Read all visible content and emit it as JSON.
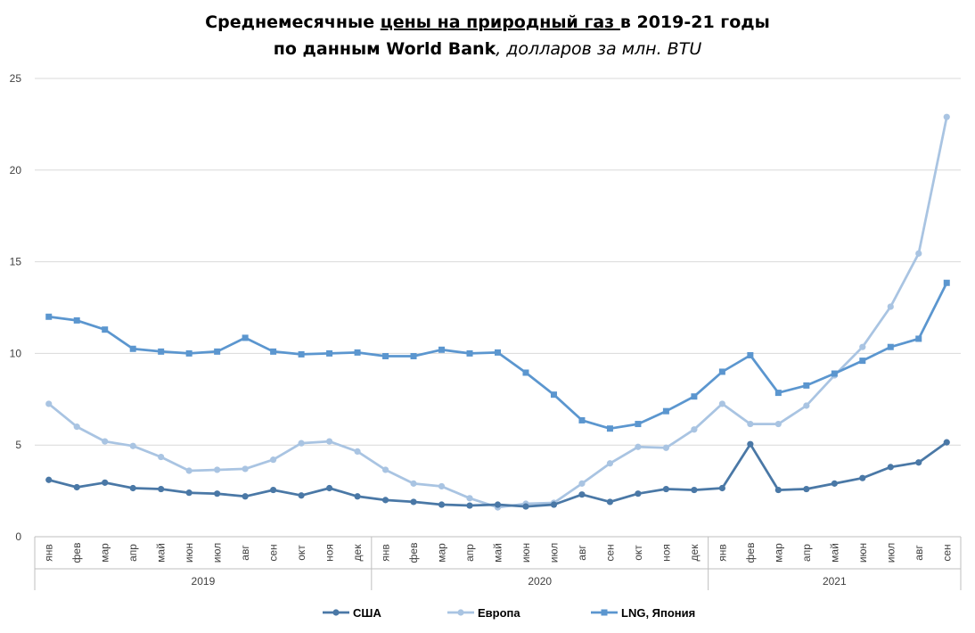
{
  "title": {
    "line1_pre": "Среднемесячные ",
    "line1_underlined": "цены на природный газ ",
    "line1_post": "в 2019-21 годы",
    "line2_bold": "по данным World Bank",
    "line2_italic": ", долларов за млн. BTU"
  },
  "colors": {
    "usa": "#4A78A6",
    "europe": "#A9C4E2",
    "lng": "#5B96CF",
    "grid": "#D9D9D9",
    "axis": "#BFBFBF"
  },
  "chart_data": {
    "type": "line",
    "title": "Среднемесячные цены на природный газ в 2019-21 годы по данным World Bank, долларов за млн. BTU",
    "ylim": [
      0,
      25
    ],
    "yticks": [
      0,
      5,
      10,
      15,
      20,
      25
    ],
    "grid": true,
    "legend_position": "bottom",
    "months": [
      "янв",
      "фев",
      "мар",
      "апр",
      "май",
      "июн",
      "июл",
      "авг",
      "сен",
      "окт",
      "ноя",
      "дек",
      "янв",
      "фев",
      "мар",
      "апр",
      "май",
      "июн",
      "июл",
      "авг",
      "сен",
      "окт",
      "ноя",
      "дек",
      "янв",
      "фев",
      "мар",
      "апр",
      "май",
      "июн",
      "июл",
      "авг",
      "сен"
    ],
    "years": [
      {
        "label": "2019",
        "count": 12
      },
      {
        "label": "2020",
        "count": 12
      },
      {
        "label": "2021",
        "count": 9
      }
    ],
    "series": [
      {
        "name": "США",
        "marker": "circle",
        "values": [
          3.1,
          2.7,
          2.95,
          2.65,
          2.6,
          2.4,
          2.35,
          2.2,
          2.55,
          2.25,
          2.65,
          2.2,
          2.0,
          1.9,
          1.75,
          1.7,
          1.75,
          1.65,
          1.75,
          2.3,
          1.9,
          2.35,
          2.6,
          2.55,
          2.65,
          5.05,
          2.55,
          2.6,
          2.9,
          3.2,
          3.8,
          4.05,
          5.15
        ]
      },
      {
        "name": "Европа",
        "marker": "circle",
        "values": [
          7.25,
          6.0,
          5.2,
          4.95,
          4.35,
          3.6,
          3.65,
          3.7,
          4.2,
          5.1,
          5.2,
          4.65,
          3.65,
          2.9,
          2.75,
          2.1,
          1.6,
          1.8,
          1.85,
          2.9,
          4.0,
          4.9,
          4.85,
          5.85,
          7.25,
          6.15,
          6.15,
          7.15,
          8.8,
          10.35,
          12.55,
          15.45,
          22.9
        ]
      },
      {
        "name": "LNG, Япония",
        "marker": "square",
        "values": [
          12.0,
          11.8,
          11.3,
          10.25,
          10.1,
          10.0,
          10.1,
          10.85,
          10.1,
          9.95,
          10.0,
          10.05,
          9.85,
          9.85,
          10.2,
          10.0,
          10.05,
          8.95,
          7.75,
          6.35,
          5.9,
          6.15,
          6.85,
          7.65,
          9.0,
          9.9,
          7.85,
          8.25,
          8.9,
          9.6,
          10.35,
          10.8,
          13.85
        ]
      }
    ]
  }
}
